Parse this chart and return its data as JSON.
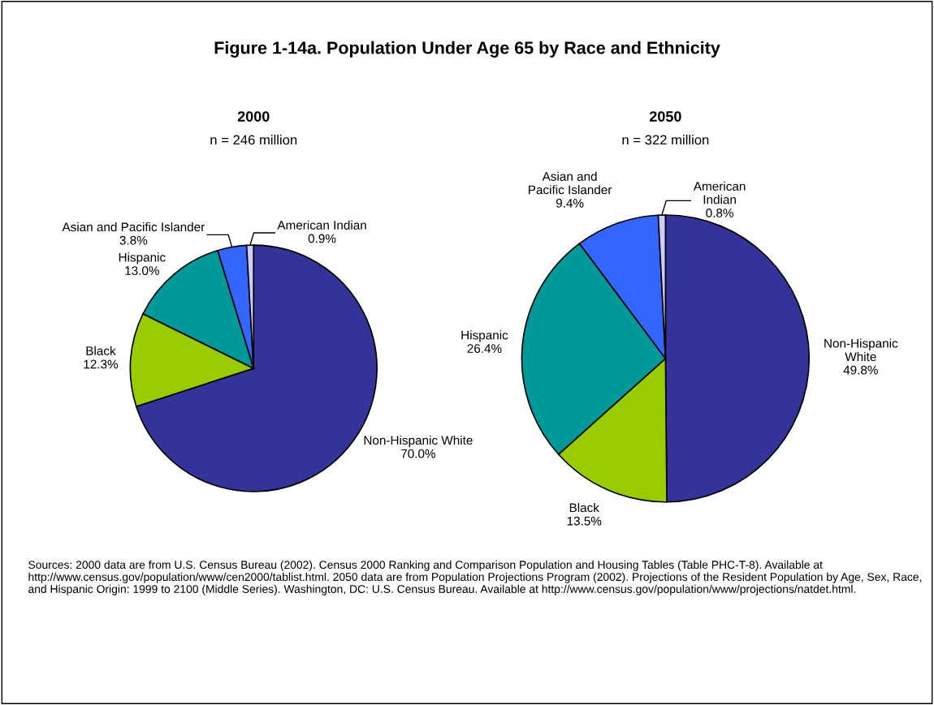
{
  "chart_data": [
    {
      "type": "pie",
      "title": "2000",
      "subtitle": "n = 246 million",
      "categories": [
        "Non-Hispanic White",
        "Black",
        "Hispanic",
        "Asian and Pacific Islander",
        "American Indian"
      ],
      "values": [
        70.0,
        12.3,
        13.0,
        3.8,
        0.9
      ],
      "value_labels": [
        "70.0%",
        "12.3%",
        "13.0%",
        "3.8%",
        "0.9%"
      ],
      "colors": [
        "#333399",
        "#99cc00",
        "#009999",
        "#3366ff",
        "#ccccff"
      ],
      "annotations": [
        "Figure 1-14a. Population Under Age 65 by Race and Ethnicity"
      ]
    },
    {
      "type": "pie",
      "title": "2050",
      "subtitle": "n = 322 million",
      "categories": [
        "Non-Hispanic\nWhite",
        "Black",
        "Hispanic",
        "Asian and\nPacific Islander",
        "American\nIndian"
      ],
      "values": [
        49.8,
        13.5,
        26.4,
        9.4,
        0.8
      ],
      "value_labels": [
        "49.8%",
        "13.5%",
        "26.4%",
        "9.4%",
        "0.8%"
      ],
      "colors": [
        "#333399",
        "#99cc00",
        "#009999",
        "#3366ff",
        "#ccccff"
      ],
      "annotations": [
        "Sources: 2000 data are from U.S. Census Bureau (2002). Census 2000 Ranking and Comparison Population and Housing Tables (Table PHC-T-8). Available at http://www.census.gov/population/www/cen2000/tablist.html. 2050 data are from Population Projections Program (2002). Projections of the Resident Population by Age, Sex, Race, and Hispanic Origin: 1999 to 2100 (Middle Series). Washington, DC: U.S. Census Bureau. Available at http://www.census.gov/population/www/projections/natdet.html."
      ]
    }
  ]
}
